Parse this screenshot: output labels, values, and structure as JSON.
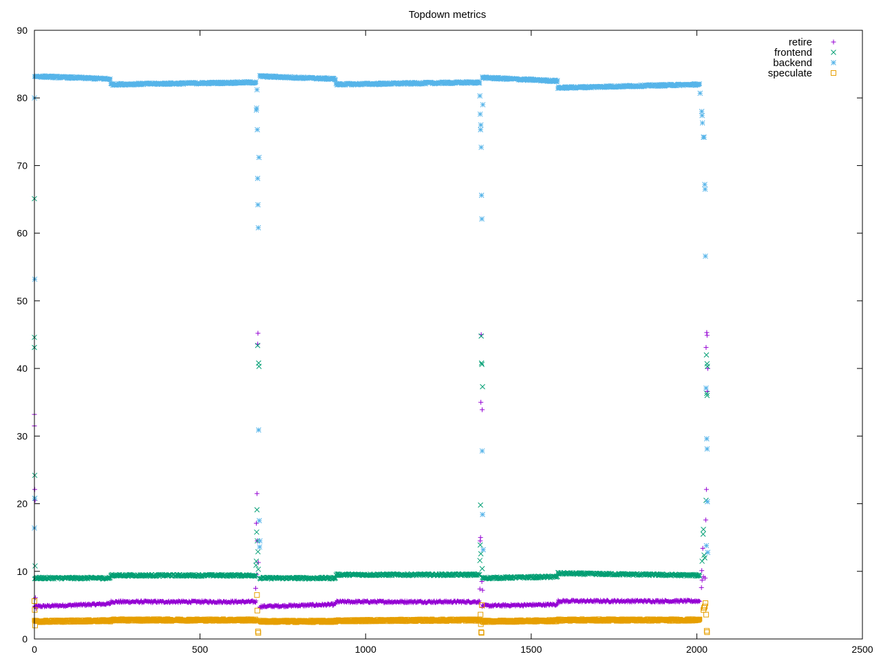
{
  "chart_data": {
    "type": "scatter",
    "title": "Topdown metrics",
    "xlabel": "",
    "ylabel": "",
    "xlim": [
      0,
      2500
    ],
    "ylim": [
      0,
      90
    ],
    "x_ticks": [
      0,
      500,
      1000,
      1500,
      2000,
      2500
    ],
    "y_ticks": [
      0,
      10,
      20,
      30,
      40,
      50,
      60,
      70,
      80,
      90
    ],
    "grid": false,
    "legend_position": "top-right",
    "series": [
      {
        "name": "retire",
        "marker": "plus",
        "color": "#9400d3",
        "segments": [
          {
            "x_start": 0,
            "x_end": 230,
            "y_start": 4.8,
            "y_end": 5.2
          },
          {
            "x_start": 230,
            "x_end": 670,
            "y_start": 5.5,
            "y_end": 5.5
          },
          {
            "x_start": 680,
            "x_end": 910,
            "y_start": 4.8,
            "y_end": 5.1
          },
          {
            "x_start": 910,
            "x_end": 1345,
            "y_start": 5.5,
            "y_end": 5.5
          },
          {
            "x_start": 1352,
            "x_end": 1580,
            "y_start": 4.9,
            "y_end": 5.1
          },
          {
            "x_start": 1580,
            "x_end": 2010,
            "y_start": 5.6,
            "y_end": 5.6
          }
        ],
        "outliers": [
          [
            0,
            33.2
          ],
          [
            0,
            31.5
          ],
          [
            1,
            22.1
          ],
          [
            2,
            20.5
          ],
          [
            3,
            6.1
          ],
          [
            5,
            4.5
          ],
          [
            672,
            21.5
          ],
          [
            670,
            17.1
          ],
          [
            673,
            14.5
          ],
          [
            668,
            7.5
          ],
          [
            676,
            11.3
          ],
          [
            675,
            45.2
          ],
          [
            674,
            43.6
          ],
          [
            671,
            9.5
          ],
          [
            1349,
            45
          ],
          [
            1348,
            35
          ],
          [
            1352,
            33.9
          ],
          [
            1347,
            15
          ],
          [
            1346,
            14.5
          ],
          [
            1351,
            8.5
          ],
          [
            1345,
            7.4
          ],
          [
            1353,
            7.2
          ],
          [
            2030,
            45.3
          ],
          [
            2031,
            44.9
          ],
          [
            2028,
            43.1
          ],
          [
            2033,
            40
          ],
          [
            2032,
            36.6
          ],
          [
            2029,
            22.1
          ],
          [
            2027,
            17.6
          ],
          [
            2018,
            13.4
          ],
          [
            2015,
            10.1
          ],
          [
            2016,
            8.7
          ],
          [
            2014,
            7.6
          ],
          [
            2020,
            9.2
          ],
          [
            2025,
            9
          ]
        ]
      },
      {
        "name": "frontend",
        "marker": "cross",
        "color": "#009e73",
        "segments": [
          {
            "x_start": 0,
            "x_end": 230,
            "y_start": 9.0,
            "y_end": 9.0
          },
          {
            "x_start": 230,
            "x_end": 670,
            "y_start": 9.4,
            "y_end": 9.4
          },
          {
            "x_start": 680,
            "x_end": 910,
            "y_start": 9.0,
            "y_end": 9.0
          },
          {
            "x_start": 910,
            "x_end": 1345,
            "y_start": 9.5,
            "y_end": 9.5
          },
          {
            "x_start": 1352,
            "x_end": 1580,
            "y_start": 9.0,
            "y_end": 9.2
          },
          {
            "x_start": 1580,
            "x_end": 2010,
            "y_start": 9.7,
            "y_end": 9.4
          }
        ],
        "outliers": [
          [
            0,
            65.1
          ],
          [
            0,
            44.6
          ],
          [
            0,
            43.1
          ],
          [
            1,
            24.2
          ],
          [
            1,
            20.8
          ],
          [
            2,
            10.8
          ],
          [
            674,
            43.4
          ],
          [
            677,
            40.8
          ],
          [
            678,
            40.3
          ],
          [
            672,
            19.1
          ],
          [
            671,
            15.8
          ],
          [
            673,
            14.5
          ],
          [
            675,
            12.9
          ],
          [
            670,
            11.5
          ],
          [
            676,
            10.3
          ],
          [
            669,
            10.9
          ],
          [
            1349,
            44.8
          ],
          [
            1350,
            40.8
          ],
          [
            1351,
            40.6
          ],
          [
            1353,
            37.3
          ],
          [
            1347,
            19.8
          ],
          [
            1346,
            13.9
          ],
          [
            1348,
            12.6
          ],
          [
            1345,
            11.6
          ],
          [
            1352,
            10.4
          ],
          [
            2029,
            42
          ],
          [
            2031,
            40.7
          ],
          [
            2032,
            40.3
          ],
          [
            2030,
            36.3
          ],
          [
            2031,
            36
          ],
          [
            2028,
            20.5
          ],
          [
            2020,
            16.2
          ],
          [
            2019,
            15.5
          ],
          [
            2022,
            12.4
          ],
          [
            2016,
            11.5
          ],
          [
            2024,
            12
          ]
        ]
      },
      {
        "name": "backend",
        "marker": "star",
        "color": "#56b4e9",
        "segments": [
          {
            "x_start": 0,
            "x_end": 230,
            "y_start": 83.2,
            "y_end": 82.8
          },
          {
            "x_start": 230,
            "x_end": 670,
            "y_start": 82.0,
            "y_end": 82.3
          },
          {
            "x_start": 680,
            "x_end": 910,
            "y_start": 83.2,
            "y_end": 82.8
          },
          {
            "x_start": 910,
            "x_end": 1345,
            "y_start": 82.0,
            "y_end": 82.3
          },
          {
            "x_start": 1352,
            "x_end": 1580,
            "y_start": 83.0,
            "y_end": 82.5
          },
          {
            "x_start": 1580,
            "x_end": 2010,
            "y_start": 81.5,
            "y_end": 82.0
          }
        ],
        "outliers": [
          [
            0,
            80
          ],
          [
            1,
            53.2
          ],
          [
            0,
            16.4
          ],
          [
            1,
            20.8
          ],
          [
            672,
            81.2
          ],
          [
            670,
            78.2
          ],
          [
            671,
            78.5
          ],
          [
            673,
            75.3
          ],
          [
            674,
            68.1
          ],
          [
            675,
            64.2
          ],
          [
            676,
            60.8
          ],
          [
            678,
            71.2
          ],
          [
            677,
            30.9
          ],
          [
            679,
            17.5
          ],
          [
            680,
            13.6
          ],
          [
            681,
            14.5
          ],
          [
            1345,
            80.3
          ],
          [
            1346,
            77.6
          ],
          [
            1348,
            76
          ],
          [
            1347,
            75.3
          ],
          [
            1349,
            72.7
          ],
          [
            1350,
            65.6
          ],
          [
            1351,
            62.1
          ],
          [
            1354,
            79
          ],
          [
            1352,
            27.8
          ],
          [
            1353,
            18.4
          ],
          [
            1355,
            13.2
          ],
          [
            2010,
            80.7
          ],
          [
            2015,
            78
          ],
          [
            2016,
            77.4
          ],
          [
            2017,
            76.3
          ],
          [
            2020,
            74.2
          ],
          [
            2022,
            74.2
          ],
          [
            2024,
            67.2
          ],
          [
            2025,
            66.5
          ],
          [
            2026,
            56.6
          ],
          [
            2028,
            37.1
          ],
          [
            2030,
            29.6
          ],
          [
            2031,
            28.1
          ],
          [
            2032,
            20.3
          ],
          [
            2029,
            13.8
          ],
          [
            2033,
            12.8
          ]
        ]
      },
      {
        "name": "speculate",
        "marker": "square",
        "color": "#e69f00",
        "segments": [
          {
            "x_start": 0,
            "x_end": 230,
            "y_start": 2.6,
            "y_end": 2.7
          },
          {
            "x_start": 230,
            "x_end": 670,
            "y_start": 2.8,
            "y_end": 2.8
          },
          {
            "x_start": 680,
            "x_end": 910,
            "y_start": 2.6,
            "y_end": 2.6
          },
          {
            "x_start": 910,
            "x_end": 1345,
            "y_start": 2.7,
            "y_end": 2.8
          },
          {
            "x_start": 1352,
            "x_end": 1580,
            "y_start": 2.6,
            "y_end": 2.7
          },
          {
            "x_start": 1580,
            "x_end": 2010,
            "y_start": 2.8,
            "y_end": 2.8
          }
        ],
        "outliers": [
          [
            0,
            5.6
          ],
          [
            1,
            4.3
          ],
          [
            2,
            2.0
          ],
          [
            672,
            6.5
          ],
          [
            673,
            4.2
          ],
          [
            675,
            1.1
          ],
          [
            676,
            0.9
          ],
          [
            1347,
            3.6
          ],
          [
            1348,
            2.2
          ],
          [
            1349,
            1.0
          ],
          [
            1350,
            0.9
          ],
          [
            1351,
            5.0
          ],
          [
            2020,
            4.3
          ],
          [
            2022,
            4.6
          ],
          [
            2024,
            4.8
          ],
          [
            2026,
            5.3
          ],
          [
            2028,
            3.6
          ],
          [
            2030,
            1.2
          ],
          [
            2031,
            1.0
          ]
        ]
      }
    ]
  }
}
